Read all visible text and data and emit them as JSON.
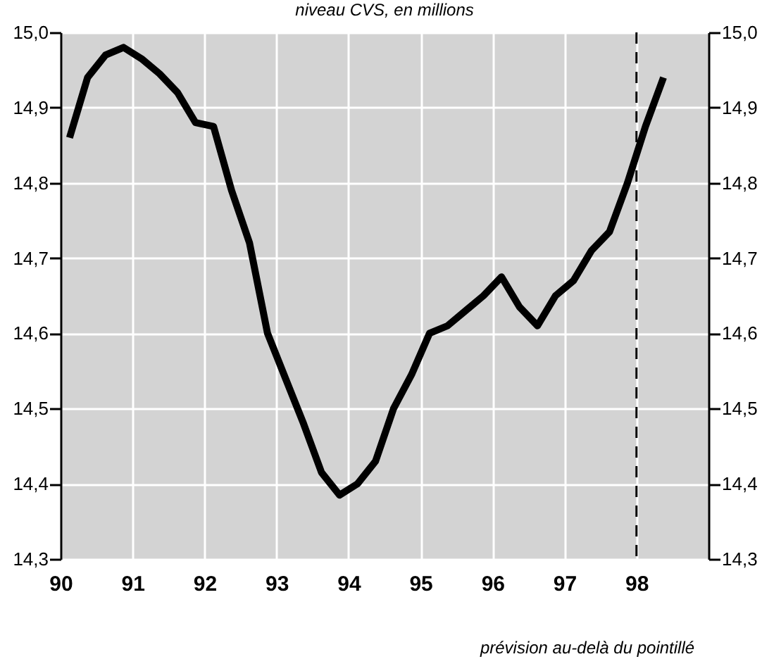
{
  "chart_data": {
    "type": "line",
    "subtitle": "niveau CVS, en millions",
    "annotations": [
      "prévision au-delà du pointillé"
    ],
    "series": [
      {
        "color": "#000000",
        "x": [
          1990.125,
          1990.375,
          1990.625,
          1990.875,
          1991.125,
          1991.375,
          1991.625,
          1991.875,
          1992.125,
          1992.375,
          1992.625,
          1992.875,
          1993.125,
          1993.375,
          1993.625,
          1993.875,
          1994.125,
          1994.375,
          1994.625,
          1994.875,
          1995.125,
          1995.375,
          1995.625,
          1995.875,
          1996.125,
          1996.375,
          1996.625,
          1996.875,
          1997.125,
          1997.375,
          1997.625,
          1997.875,
          1998.125,
          1998.375
        ],
        "values": [
          14.86,
          14.94,
          14.97,
          14.98,
          14.965,
          14.945,
          14.92,
          14.88,
          14.875,
          14.79,
          14.72,
          14.6,
          14.54,
          14.48,
          14.415,
          14.385,
          14.4,
          14.43,
          14.5,
          14.545,
          14.6,
          14.61,
          14.63,
          14.65,
          14.675,
          14.635,
          14.61,
          14.65,
          14.67,
          14.71,
          14.735,
          14.8,
          14.875,
          14.94
        ]
      }
    ],
    "xlim": [
      1990,
      1999
    ],
    "xticks": [
      {
        "value": 1990,
        "label": "90"
      },
      {
        "value": 1991,
        "label": "91"
      },
      {
        "value": 1992,
        "label": "92"
      },
      {
        "value": 1993,
        "label": "93"
      },
      {
        "value": 1994,
        "label": "94"
      },
      {
        "value": 1995,
        "label": "95"
      },
      {
        "value": 1996,
        "label": "96"
      },
      {
        "value": 1997,
        "label": "97"
      },
      {
        "value": 1998,
        "label": "98"
      }
    ],
    "ylim": [
      14.3,
      15.0
    ],
    "yticks": [
      {
        "value": 14.3,
        "label": "14,3"
      },
      {
        "value": 14.4,
        "label": "14,4"
      },
      {
        "value": 14.5,
        "label": "14,5"
      },
      {
        "value": 14.6,
        "label": "14,6"
      },
      {
        "value": 14.7,
        "label": "14,7"
      },
      {
        "value": 14.8,
        "label": "14,8"
      },
      {
        "value": 14.9,
        "label": "14,9"
      },
      {
        "value": 15.0,
        "label": "15,0"
      }
    ],
    "y2lim": [
      14.3,
      15.0
    ],
    "y2ticks": [
      {
        "value": 14.3,
        "label": "14,3"
      },
      {
        "value": 14.4,
        "label": "14,4"
      },
      {
        "value": 14.5,
        "label": "14,5"
      },
      {
        "value": 14.6,
        "label": "14,6"
      },
      {
        "value": 14.7,
        "label": "14,7"
      },
      {
        "value": 14.8,
        "label": "14,8"
      },
      {
        "value": 14.9,
        "label": "14,9"
      },
      {
        "value": 15.0,
        "label": "15,0"
      }
    ],
    "grid": true,
    "line_style": "solid",
    "ref_lines": [
      {
        "axis": "x",
        "value": 1998,
        "line_style": "dashed"
      }
    ]
  }
}
